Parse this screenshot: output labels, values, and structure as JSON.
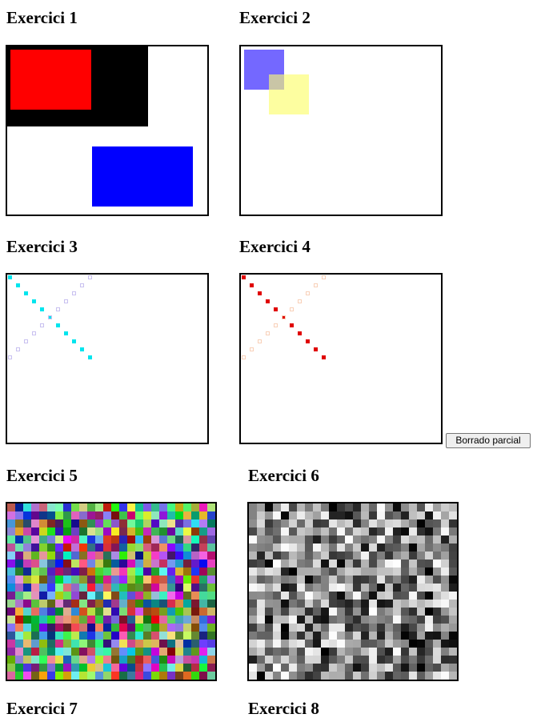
{
  "exercises": [
    {
      "title": "Exercici 1"
    },
    {
      "title": "Exercici 2"
    },
    {
      "title": "Exercici 3"
    },
    {
      "title": "Exercici 4"
    },
    {
      "title": "Exercici 5"
    },
    {
      "title": "Exercici 6"
    },
    {
      "title": "Exercici 7"
    },
    {
      "title": "Exercici 8"
    }
  ],
  "controls": {
    "partial_clear_label": "Borrado parcial"
  },
  "colors": {
    "canvas_border": "#000000",
    "ex1_black": "#000000",
    "ex1_red": "#ff0000",
    "ex1_blue": "#0000ff",
    "ex2_purple": "#7468ff",
    "ex2_yellow": "#fdfea0",
    "ex2_overlap": "#c9c5a6",
    "ex3_cyan": "#00e5ee",
    "ex3_lavender": "#c8c0f0",
    "ex4_red": "#e00000",
    "ex4_peach": "#f8d0b8"
  }
}
